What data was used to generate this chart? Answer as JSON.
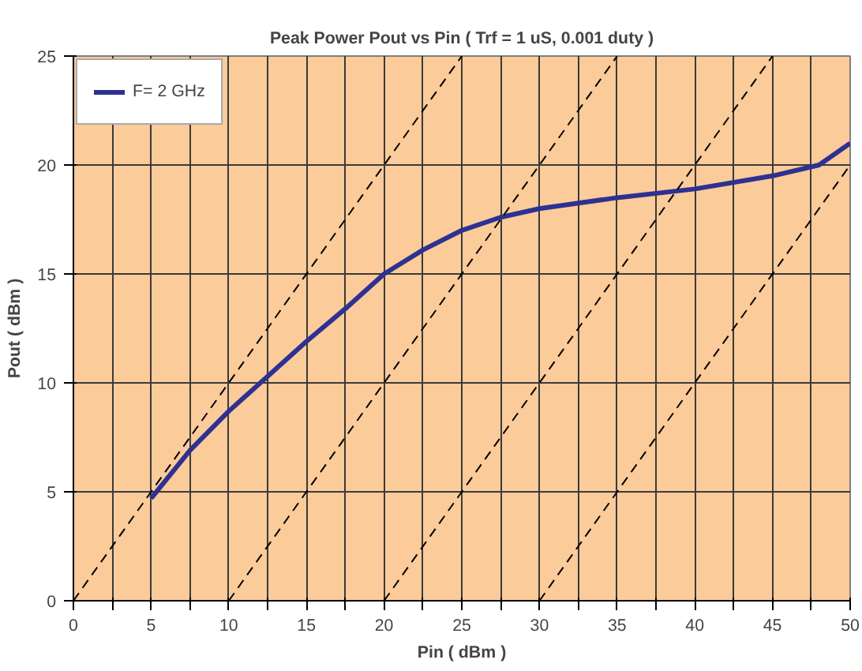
{
  "chart_data": {
    "type": "line",
    "title": "Peak Power Pout vs Pin ( Trf = 1 uS, 0.001 duty )",
    "xlabel": "Pin ( dBm )",
    "ylabel": "Pout ( dBm )",
    "xlim": [
      0,
      50
    ],
    "ylim": [
      0,
      25
    ],
    "xticks": [
      0,
      {
        "value": 2.5,
        "label": null
      },
      5,
      {
        "value": 7.5,
        "label": null
      },
      10,
      {
        "value": 12.5,
        "label": null
      },
      15,
      {
        "value": 17.5,
        "label": null
      },
      20,
      {
        "value": 22.5,
        "label": null
      },
      25,
      {
        "value": 27.5,
        "label": null
      },
      30,
      {
        "value": 32.5,
        "label": null
      },
      35,
      {
        "value": 37.5,
        "label": null
      },
      40,
      {
        "value": 42.5,
        "label": null
      },
      45,
      {
        "value": 47.5,
        "label": null
      },
      50
    ],
    "yticks": [
      0,
      5,
      10,
      15,
      20,
      25
    ],
    "grid": true,
    "legend": "top left",
    "marker": "none",
    "series": [
      {
        "name": "F= 2 GHz",
        "color": "#2e3192",
        "line_style": "solid",
        "x": [
          5,
          7.5,
          10,
          12.5,
          15,
          17.5,
          20,
          22.5,
          25,
          27.5,
          30,
          35,
          40,
          45,
          48,
          50
        ],
        "values": [
          4.7,
          6.9,
          8.7,
          10.3,
          11.9,
          13.4,
          15,
          16.1,
          17,
          17.6,
          18,
          18.5,
          18.9,
          19.5,
          20,
          21
        ]
      },
      {
        "color": "#000000",
        "line_style": "dashed",
        "x": [
          0,
          25
        ],
        "values": [
          0,
          25
        ]
      },
      {
        "color": "#000000",
        "line_style": "dashed",
        "x": [
          10,
          35
        ],
        "values": [
          0,
          25
        ]
      },
      {
        "color": "#000000",
        "line_style": "dashed",
        "x": [
          20,
          45
        ],
        "values": [
          0,
          25
        ]
      },
      {
        "color": "#000000",
        "line_style": "dashed",
        "x": [
          30,
          50
        ],
        "values": [
          0,
          20
        ]
      }
    ]
  }
}
